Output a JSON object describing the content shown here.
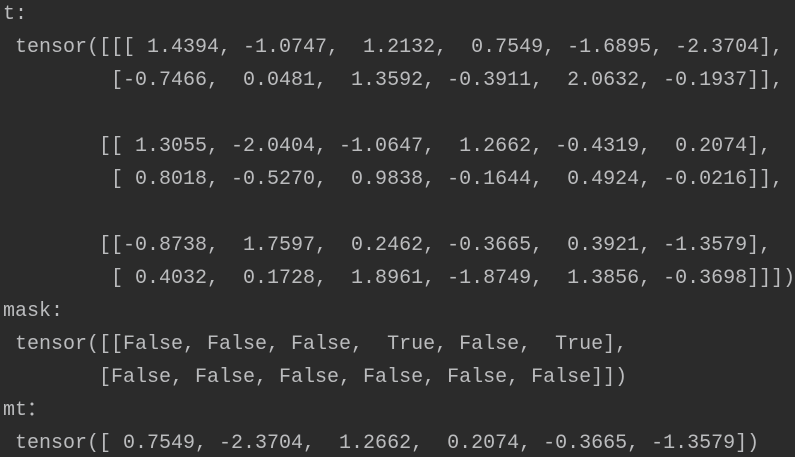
{
  "console": {
    "sections": [
      {
        "label": "t:",
        "lines": [
          " tensor([[[ 1.4394, -1.0747,  1.2132,  0.7549, -1.6895, -2.3704],",
          "         [-0.7466,  0.0481,  1.3592, -0.3911,  2.0632, -0.1937]],",
          "        [[ 1.3055, -2.0404, -1.0647,  1.2662, -0.4319,  0.2074],",
          "         [ 0.8018, -0.5270,  0.9838, -0.1644,  0.4924, -0.0216]],",
          "        [[-0.8738,  1.7597,  0.2462, -0.3665,  0.3921, -1.3579],",
          "         [ 0.4032,  0.1728,  1.8961, -1.8749,  1.3856, -0.3698]]])"
        ]
      },
      {
        "label": "mask:",
        "lines": [
          " tensor([[False, False, False,  True, False,  True],",
          "        [False, False, False, False, False, False]])"
        ]
      },
      {
        "label": "mt：",
        "lines": [
          " tensor([ 0.7549, -2.3704,  1.2662,  0.2074, -0.3665, -1.3579])"
        ]
      }
    ]
  }
}
